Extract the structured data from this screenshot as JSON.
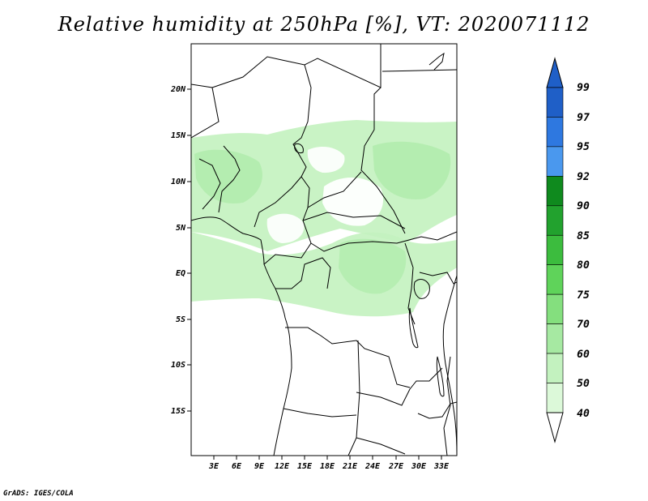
{
  "title": "Relative humidity at 250hPa [%], VT: 2020071112",
  "credit": "GrADS: IGES/COLA",
  "map": {
    "lat_labels": [
      "20N",
      "15N",
      "10N",
      "5N",
      "EQ",
      "5S",
      "10S",
      "15S"
    ],
    "lon_labels": [
      "3E",
      "6E",
      "9E",
      "12E",
      "15E",
      "18E",
      "21E",
      "24E",
      "27E",
      "30E",
      "33E"
    ]
  },
  "legend": {
    "labels": [
      "99",
      "97",
      "95",
      "92",
      "90",
      "85",
      "80",
      "75",
      "70",
      "60",
      "50",
      "40"
    ],
    "colors": [
      "#1f5fc7",
      "#2e78e0",
      "#4a98ee",
      "#0f8a1e",
      "#22a22e",
      "#3cbc3e",
      "#5fd35a",
      "#84df7e",
      "#a6e9a2",
      "#c3f2bf",
      "#dcf9d9",
      "#f0fcee"
    ]
  }
}
